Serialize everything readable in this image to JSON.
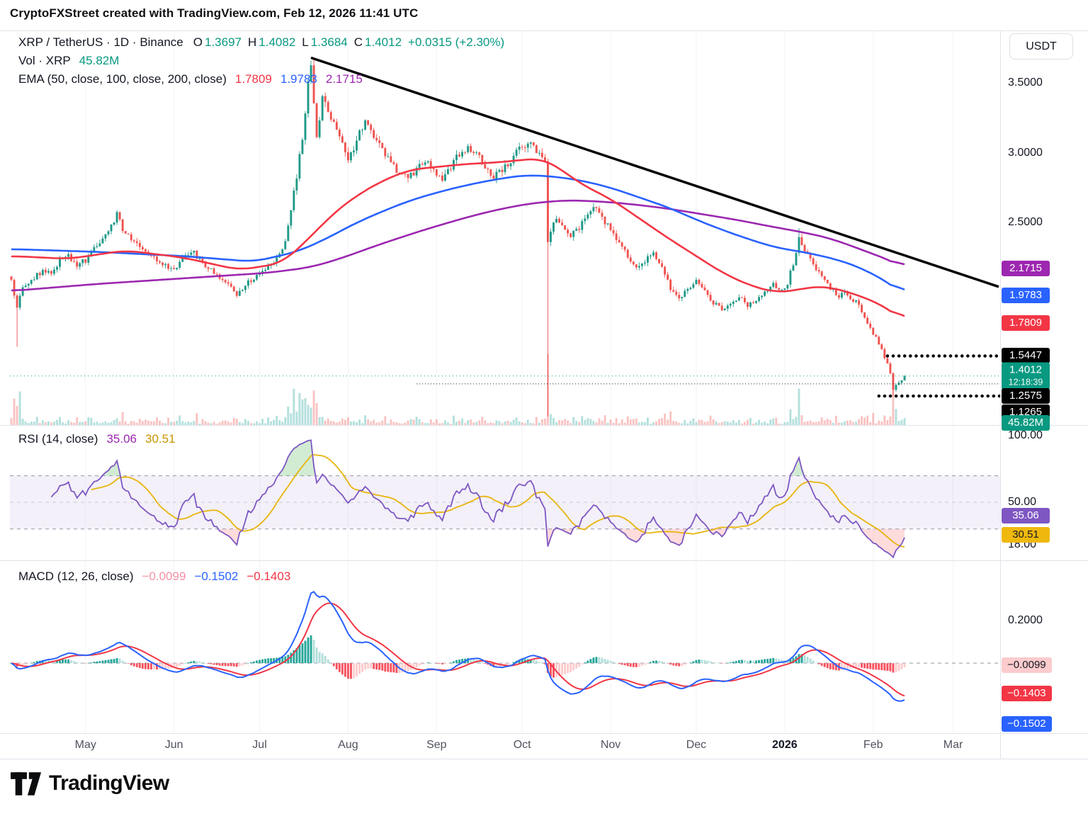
{
  "header": {
    "title": "CryptoFXStreet created with TradingView.com, Feb 12, 2026 11:41 UTC"
  },
  "toolbar": {
    "currency_button": "USDT"
  },
  "legend": {
    "symbol": "XRP / TetherUS · 1D · Binance",
    "o_label": "O",
    "o_value": "1.3697",
    "h_label": "H",
    "h_value": "1.4082",
    "l_label": "L",
    "l_value": "1.3684",
    "c_label": "C",
    "c_value": "1.4012",
    "change": "+0.0315 (+2.30%)",
    "vol_label": "Vol · XRP",
    "vol_value": "45.82M",
    "ema_label": "EMA (50, close, 100, close, 200, close)",
    "ema50_value": "1.7809",
    "ema100_value": "1.9783",
    "ema200_value": "2.1715"
  },
  "rsi_legend": {
    "label": "RSI (14, close)",
    "rsi_value": "35.06",
    "ma_value": "30.51"
  },
  "macd_legend": {
    "label": "MACD (12, 26, close)",
    "hist_value": "−0.0099",
    "macd_value": "−0.1502",
    "signal_value": "−0.1403"
  },
  "footer": {
    "brand": "TradingView"
  },
  "price_axis": {
    "ticks": [
      {
        "label": "3.5000",
        "value": 3.5
      },
      {
        "label": "3.0000",
        "value": 3.0
      },
      {
        "label": "2.5000",
        "value": 2.5
      }
    ],
    "tags": [
      {
        "label": "2.1715",
        "value": 2.1715,
        "bg": "#9c27b0",
        "fg": "#ffffff"
      },
      {
        "label": "1.9783",
        "value": 1.9783,
        "bg": "#2962ff",
        "fg": "#ffffff"
      },
      {
        "label": "1.7809",
        "value": 1.7809,
        "bg": "#f23645",
        "fg": "#ffffff"
      },
      {
        "label": "1.5447",
        "value": 1.5447,
        "bg": "#000000",
        "fg": "#ffffff"
      },
      {
        "label": "1.4012",
        "value": 1.4012,
        "bg": "#089981",
        "fg": "#ffffff",
        "sub": "12:18:39"
      },
      {
        "label": "1.2575",
        "value": 1.2575,
        "bg": "#000000",
        "fg": "#ffffff"
      },
      {
        "label": "1.1265",
        "value": 1.1265,
        "bg": "#000000",
        "fg": "#ffffff",
        "dy": -3
      },
      {
        "label": "45.82M",
        "bg": "#089981",
        "fg": "#ffffff",
        "pin_y": 597
      }
    ]
  },
  "rsi_axis": {
    "ticks": [
      {
        "label": "100.00",
        "value": 100
      },
      {
        "label": "50.00",
        "value": 50
      },
      {
        "label": "18.00",
        "value": 18
      }
    ],
    "tags": [
      {
        "label": "35.06",
        "value": 35.06,
        "bg": "#7e57c2",
        "fg": "#ffffff",
        "dy": -9
      },
      {
        "label": "30.51",
        "value": 30.51,
        "bg": "#efb80e",
        "fg": "#131722",
        "dy": 9
      }
    ]
  },
  "macd_axis": {
    "ticks": [
      {
        "label": "0.2000",
        "value": 0.2
      }
    ],
    "tags": [
      {
        "label": "−0.0099",
        "value": -0.0099,
        "bg": "#fccbcd",
        "fg": "#131722"
      },
      {
        "label": "−0.1403",
        "value": -0.1403,
        "bg": "#f23645",
        "fg": "#ffffff"
      },
      {
        "label": "−0.1502",
        "value": -0.1502,
        "bg": "#2962ff",
        "fg": "#ffffff",
        "dy": 40
      }
    ]
  },
  "colors": {
    "up": "#209988",
    "down": "#ef5350",
    "vol_up": "#26a69a59",
    "vol_down": "#ef535059",
    "ema50": "#f23645",
    "ema100": "#2962ff",
    "ema200": "#9c27b0",
    "trendline": "#000000",
    "rsi_line": "#7e57c2",
    "rsi_ma": "#e8b40c",
    "rsi_band": "rgba(126,87,194,0.09)",
    "macd_line": "#2962ff",
    "macd_signal": "#f23645",
    "hist_ga": "#26a69a",
    "hist_fa": "#b2dfdb",
    "hist_gb": "#fccbcd",
    "hist_fb": "#f7525f",
    "last_price": "#089981",
    "accent_teal": "#089981"
  },
  "chart_data": {
    "type": "candlestick+indicators",
    "symbol": "XRP/USDT",
    "interval": "1D",
    "exchange": "Binance",
    "ohlc_current": {
      "open": 1.3697,
      "high": 1.4082,
      "low": 1.3684,
      "close": 1.4012,
      "change_abs": 0.0315,
      "change_pct": 2.3
    },
    "volume_current": "45.82M",
    "ylim": [
      1.05,
      3.85
    ],
    "x_days_total": 347,
    "data_end_day": 313,
    "month_starts": [
      {
        "label": "May",
        "day": 26
      },
      {
        "label": "Jun",
        "day": 57
      },
      {
        "label": "Jul",
        "day": 87
      },
      {
        "label": "Aug",
        "day": 118
      },
      {
        "label": "Sep",
        "day": 149
      },
      {
        "label": "Oct",
        "day": 179
      },
      {
        "label": "Nov",
        "day": 210
      },
      {
        "label": "Dec",
        "day": 240
      },
      {
        "label": "2026",
        "day": 271,
        "bold": true
      },
      {
        "label": "Feb",
        "day": 302
      },
      {
        "label": "Mar",
        "day": 330
      }
    ],
    "close_anchors": [
      [
        0,
        2.08
      ],
      [
        2,
        1.9
      ],
      [
        3,
        1.99
      ],
      [
        5,
        2.05
      ],
      [
        8,
        2.1
      ],
      [
        11,
        2.16
      ],
      [
        14,
        2.14
      ],
      [
        17,
        2.22
      ],
      [
        20,
        2.26
      ],
      [
        23,
        2.2
      ],
      [
        26,
        2.23
      ],
      [
        29,
        2.31
      ],
      [
        32,
        2.38
      ],
      [
        35,
        2.47
      ],
      [
        37,
        2.57
      ],
      [
        39,
        2.46
      ],
      [
        42,
        2.38
      ],
      [
        45,
        2.33
      ],
      [
        48,
        2.29
      ],
      [
        51,
        2.24
      ],
      [
        54,
        2.19
      ],
      [
        57,
        2.17
      ],
      [
        60,
        2.24
      ],
      [
        63,
        2.3
      ],
      [
        66,
        2.24
      ],
      [
        69,
        2.17
      ],
      [
        72,
        2.12
      ],
      [
        75,
        2.09
      ],
      [
        79,
        1.97
      ],
      [
        82,
        2.05
      ],
      [
        85,
        2.11
      ],
      [
        88,
        2.16
      ],
      [
        91,
        2.2
      ],
      [
        94,
        2.27
      ],
      [
        96,
        2.38
      ],
      [
        98,
        2.58
      ],
      [
        100,
        2.84
      ],
      [
        102,
        3.12
      ],
      [
        103,
        3.3
      ],
      [
        104,
        3.5
      ],
      [
        105,
        3.62
      ],
      [
        106,
        3.36
      ],
      [
        107,
        3.12
      ],
      [
        108,
        3.25
      ],
      [
        109,
        3.42
      ],
      [
        110,
        3.36
      ],
      [
        112,
        3.26
      ],
      [
        114,
        3.17
      ],
      [
        116,
        3.06
      ],
      [
        118,
        2.97
      ],
      [
        120,
        3.04
      ],
      [
        122,
        3.14
      ],
      [
        124,
        3.22
      ],
      [
        126,
        3.16
      ],
      [
        128,
        3.08
      ],
      [
        130,
        3.02
      ],
      [
        132,
        2.95
      ],
      [
        134,
        2.9
      ],
      [
        136,
        2.86
      ],
      [
        139,
        2.81
      ],
      [
        142,
        2.88
      ],
      [
        145,
        2.95
      ],
      [
        148,
        2.86
      ],
      [
        151,
        2.81
      ],
      [
        154,
        2.9
      ],
      [
        157,
        2.99
      ],
      [
        160,
        3.05
      ],
      [
        163,
        2.99
      ],
      [
        166,
        2.91
      ],
      [
        169,
        2.83
      ],
      [
        172,
        2.87
      ],
      [
        175,
        2.95
      ],
      [
        178,
        3.02
      ],
      [
        181,
        3.08
      ],
      [
        184,
        3.0
      ],
      [
        186,
        2.95
      ],
      [
        187,
        2.93
      ],
      [
        188,
        2.35
      ],
      [
        189,
        2.44
      ],
      [
        191,
        2.53
      ],
      [
        193,
        2.47
      ],
      [
        196,
        2.41
      ],
      [
        199,
        2.47
      ],
      [
        202,
        2.55
      ],
      [
        205,
        2.62
      ],
      [
        207,
        2.53
      ],
      [
        210,
        2.45
      ],
      [
        213,
        2.36
      ],
      [
        216,
        2.26
      ],
      [
        219,
        2.16
      ],
      [
        222,
        2.22
      ],
      [
        225,
        2.29
      ],
      [
        228,
        2.17
      ],
      [
        231,
        2.03
      ],
      [
        234,
        1.95
      ],
      [
        237,
        2.02
      ],
      [
        240,
        2.08
      ],
      [
        243,
        2.0
      ],
      [
        246,
        1.93
      ],
      [
        249,
        1.87
      ],
      [
        252,
        1.91
      ],
      [
        255,
        1.97
      ],
      [
        258,
        1.91
      ],
      [
        261,
        1.94
      ],
      [
        264,
        2.0
      ],
      [
        267,
        2.05
      ],
      [
        270,
        2.02
      ],
      [
        272,
        2.07
      ],
      [
        274,
        2.21
      ],
      [
        276,
        2.39
      ],
      [
        278,
        2.31
      ],
      [
        280,
        2.23
      ],
      [
        282,
        2.17
      ],
      [
        284,
        2.11
      ],
      [
        286,
        2.05
      ],
      [
        288,
        2.01
      ],
      [
        290,
        1.97
      ],
      [
        292,
        1.99
      ],
      [
        294,
        1.96
      ],
      [
        296,
        1.93
      ],
      [
        298,
        1.86
      ],
      [
        300,
        1.78
      ],
      [
        302,
        1.7
      ],
      [
        303,
        1.67
      ],
      [
        305,
        1.58
      ],
      [
        307,
        1.49
      ],
      [
        308,
        1.42
      ],
      [
        309,
        1.3
      ],
      [
        310,
        1.335
      ],
      [
        311,
        1.355
      ],
      [
        312,
        1.3697
      ],
      [
        313,
        1.4012
      ]
    ],
    "events": [
      {
        "day": 2,
        "low": 1.61
      },
      {
        "day": 105,
        "high": 3.66
      },
      {
        "day": 188,
        "low": 1.11
      },
      {
        "day": 276,
        "high": 2.46
      },
      {
        "day": 309,
        "low": 1.2575
      }
    ],
    "volume_spike_days": [
      1,
      2,
      3,
      99,
      100,
      101,
      102,
      103,
      104,
      105,
      106,
      188,
      189,
      276,
      309,
      310
    ],
    "ema_anchors": {
      "ema50": [
        [
          0,
          2.26
        ],
        [
          20,
          2.24
        ],
        [
          40,
          2.3
        ],
        [
          60,
          2.25
        ],
        [
          80,
          2.16
        ],
        [
          95,
          2.21
        ],
        [
          105,
          2.4
        ],
        [
          112,
          2.55
        ],
        [
          120,
          2.68
        ],
        [
          130,
          2.8
        ],
        [
          140,
          2.88
        ],
        [
          150,
          2.9
        ],
        [
          160,
          2.92
        ],
        [
          170,
          2.93
        ],
        [
          180,
          2.95
        ],
        [
          186,
          2.96
        ],
        [
          192,
          2.89
        ],
        [
          200,
          2.77
        ],
        [
          210,
          2.67
        ],
        [
          220,
          2.53
        ],
        [
          230,
          2.39
        ],
        [
          240,
          2.26
        ],
        [
          250,
          2.13
        ],
        [
          260,
          2.04
        ],
        [
          268,
          2.0
        ],
        [
          274,
          2.01
        ],
        [
          280,
          2.04
        ],
        [
          286,
          2.04
        ],
        [
          292,
          2.01
        ],
        [
          298,
          1.97
        ],
        [
          304,
          1.92
        ],
        [
          308,
          1.87
        ],
        [
          311,
          1.83
        ],
        [
          313,
          1.78
        ]
      ],
      "ema100": [
        [
          0,
          2.31
        ],
        [
          30,
          2.29
        ],
        [
          60,
          2.26
        ],
        [
          85,
          2.22
        ],
        [
          100,
          2.29
        ],
        [
          110,
          2.38
        ],
        [
          120,
          2.49
        ],
        [
          130,
          2.58
        ],
        [
          140,
          2.66
        ],
        [
          150,
          2.72
        ],
        [
          160,
          2.77
        ],
        [
          170,
          2.81
        ],
        [
          180,
          2.84
        ],
        [
          190,
          2.83
        ],
        [
          200,
          2.8
        ],
        [
          210,
          2.75
        ],
        [
          220,
          2.68
        ],
        [
          230,
          2.61
        ],
        [
          240,
          2.52
        ],
        [
          250,
          2.44
        ],
        [
          260,
          2.37
        ],
        [
          268,
          2.32
        ],
        [
          274,
          2.3
        ],
        [
          280,
          2.28
        ],
        [
          286,
          2.25
        ],
        [
          292,
          2.22
        ],
        [
          298,
          2.17
        ],
        [
          304,
          2.11
        ],
        [
          308,
          2.06
        ],
        [
          313,
          1.98
        ]
      ],
      "ema200": [
        [
          0,
          2.01
        ],
        [
          30,
          2.06
        ],
        [
          60,
          2.1
        ],
        [
          90,
          2.14
        ],
        [
          105,
          2.18
        ],
        [
          115,
          2.24
        ],
        [
          130,
          2.35
        ],
        [
          145,
          2.45
        ],
        [
          160,
          2.54
        ],
        [
          172,
          2.6
        ],
        [
          183,
          2.64
        ],
        [
          195,
          2.66
        ],
        [
          207,
          2.65
        ],
        [
          218,
          2.63
        ],
        [
          230,
          2.6
        ],
        [
          242,
          2.56
        ],
        [
          254,
          2.52
        ],
        [
          264,
          2.48
        ],
        [
          272,
          2.45
        ],
        [
          280,
          2.42
        ],
        [
          288,
          2.38
        ],
        [
          296,
          2.32
        ],
        [
          304,
          2.26
        ],
        [
          310,
          2.21
        ],
        [
          313,
          2.17
        ]
      ]
    },
    "trendline": {
      "from": [
        105,
        3.68
      ],
      "to": [
        346,
        2.04
      ]
    },
    "levels": [
      {
        "price": 1.5447,
        "style": "dotted-bold",
        "from_day": 307
      },
      {
        "price": 1.2575,
        "style": "dotted-bold",
        "from_day": 304
      },
      {
        "price": 1.345,
        "style": "dotted-thin",
        "from_day": 142
      },
      {
        "price": 1.4012,
        "style": "current",
        "from_day": 0
      }
    ],
    "rsi": {
      "period": 14,
      "current": 35.06,
      "ma_current": 30.51,
      "range": [
        8,
        106
      ],
      "bands": [
        30,
        50,
        70
      ]
    },
    "macd": {
      "fast": 12,
      "slow": 26,
      "signal": 9,
      "hist_current": -0.0099,
      "macd_current": -0.1502,
      "signal_current": -0.1403,
      "range": [
        -0.31,
        0.45
      ]
    }
  }
}
